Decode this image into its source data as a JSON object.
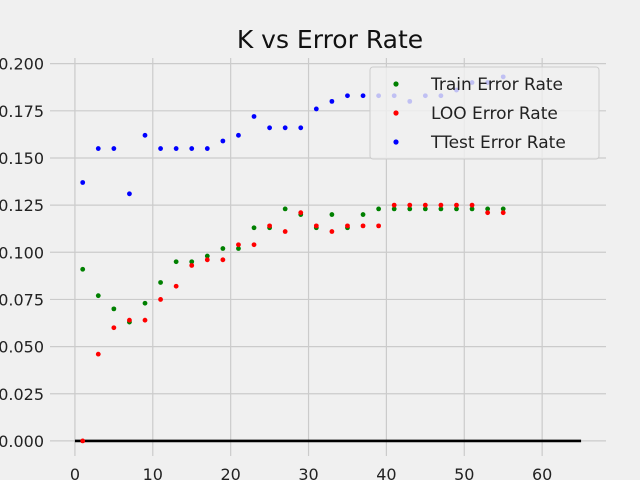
{
  "chart_data": {
    "type": "scatter",
    "title": "K vs Error Rate",
    "xlabel": "",
    "ylabel": "",
    "xlim": [
      -3.2,
      68.2
    ],
    "ylim": [
      -0.008,
      0.203
    ],
    "x_ticks": [
      0,
      10,
      20,
      30,
      40,
      50,
      60
    ],
    "y_ticks": [
      0.0,
      0.025,
      0.05,
      0.075,
      0.1,
      0.125,
      0.15,
      0.175,
      0.2
    ],
    "x_tick_labels": [
      "0",
      "10",
      "20",
      "30",
      "40",
      "50",
      "60"
    ],
    "y_tick_labels": [
      "0.000",
      "0.025",
      "0.050",
      "0.075",
      "0.100",
      "0.125",
      "0.150",
      "0.175",
      "0.200"
    ],
    "grid": true,
    "legend_position": "top-right",
    "baseline": {
      "y": 0,
      "x_start": 0,
      "x_end": 65,
      "color": "#000000"
    },
    "x": [
      1,
      3,
      5,
      7,
      9,
      11,
      13,
      15,
      17,
      19,
      21,
      23,
      25,
      27,
      29,
      31,
      33,
      35,
      37,
      39,
      41,
      43,
      45,
      47,
      49,
      51,
      53,
      55
    ],
    "series": [
      {
        "name": "Train Error Rate",
        "color": "#008000",
        "values": [
          0.091,
          0.077,
          0.07,
          0.063,
          0.073,
          0.084,
          0.095,
          0.095,
          0.098,
          0.102,
          0.102,
          0.113,
          0.113,
          0.123,
          0.12,
          0.113,
          0.12,
          0.113,
          0.12,
          0.123,
          0.123,
          0.123,
          0.123,
          0.123,
          0.123,
          0.123,
          0.123,
          0.123
        ]
      },
      {
        "name": "LOO Error Rate",
        "color": "#ff0000",
        "values": [
          0.0,
          0.046,
          0.06,
          0.064,
          0.064,
          0.075,
          0.082,
          0.093,
          0.096,
          0.096,
          0.104,
          0.104,
          0.114,
          0.111,
          0.121,
          0.114,
          0.111,
          0.114,
          0.114,
          0.114,
          0.125,
          0.125,
          0.125,
          0.125,
          0.125,
          0.125,
          0.121,
          0.121
        ]
      },
      {
        "name": "TTest Error Rate",
        "color": "#0000ff",
        "values": [
          0.137,
          0.155,
          0.155,
          0.131,
          0.162,
          0.155,
          0.155,
          0.155,
          0.155,
          0.159,
          0.162,
          0.172,
          0.166,
          0.166,
          0.166,
          0.176,
          0.18,
          0.183,
          0.183,
          0.183,
          0.183,
          0.18,
          0.183,
          0.183,
          0.186,
          0.19,
          0.19,
          0.193
        ]
      }
    ]
  }
}
